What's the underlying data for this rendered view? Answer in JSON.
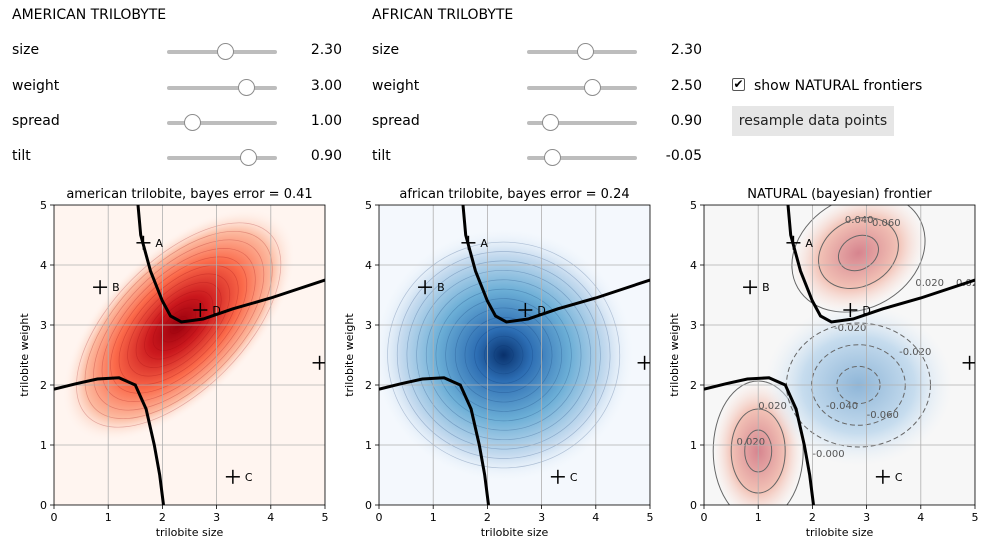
{
  "american": {
    "title": "AMERICAN TRILOBYTE",
    "controls": [
      {
        "label": "size",
        "value": "2.30",
        "level": 0.53
      },
      {
        "label": "weight",
        "value": "3.00",
        "level": 0.72
      },
      {
        "label": "spread",
        "value": "1.00",
        "level": 0.23
      },
      {
        "label": "tilt",
        "value": "0.90",
        "level": 0.74
      }
    ]
  },
  "african": {
    "title": "AFRICAN TRILOBYTE",
    "controls": [
      {
        "label": "size",
        "value": "2.30",
        "level": 0.53
      },
      {
        "label": "weight",
        "value": "2.50",
        "level": 0.59
      },
      {
        "label": "spread",
        "value": "0.90",
        "level": 0.21
      },
      {
        "label": "tilt",
        "value": "-0.05",
        "level": 0.23
      }
    ]
  },
  "options": {
    "show_frontiers_label": "show NATURAL frontiers",
    "show_frontiers_checked": true,
    "resample_label": "resample data points"
  },
  "chart_data": [
    {
      "type": "heatmap",
      "title": "american trilobite, bayes error = 0.41",
      "xlabel": "trilobite size",
      "ylabel": "trilobite weight",
      "xlim": [
        0,
        5
      ],
      "ylim": [
        0,
        5
      ],
      "xticks": [
        "0",
        "1",
        "2",
        "3",
        "4",
        "5"
      ],
      "yticks": [
        "0",
        "1",
        "2",
        "3",
        "4",
        "5"
      ],
      "colormap": "Reds",
      "color": "#cb181d",
      "density": {
        "mean": [
          2.3,
          3.0
        ],
        "spread": 1.0,
        "tilt": 0.9
      },
      "grid": true
    },
    {
      "type": "heatmap",
      "title": "african trilobite, bayes error = 0.24",
      "xlabel": "trilobite size",
      "ylabel": "trilobite weight",
      "xlim": [
        0,
        5
      ],
      "ylim": [
        0,
        5
      ],
      "xticks": [
        "0",
        "1",
        "2",
        "3",
        "4",
        "5"
      ],
      "yticks": [
        "0",
        "1",
        "2",
        "3",
        "4",
        "5"
      ],
      "colormap": "Blues",
      "color": "#2c6db3",
      "density": {
        "mean": [
          2.3,
          2.5
        ],
        "spread": 0.9,
        "tilt": -0.05
      },
      "grid": true
    },
    {
      "type": "heatmap",
      "title": "NATURAL (bayesian) frontier",
      "xlabel": "trilobite size",
      "ylabel": "trilobite weight",
      "xlim": [
        0,
        5
      ],
      "ylim": [
        0,
        5
      ],
      "xticks": [
        "0",
        "1",
        "2",
        "3",
        "4",
        "5"
      ],
      "yticks": [
        "0",
        "1",
        "2",
        "3",
        "4",
        "5"
      ],
      "colormap": "RdBu diverging",
      "contour_labels": [
        "0.040",
        "0.060",
        "0.020",
        "0.020",
        "-0.020",
        "-0.040",
        "-0.060",
        "0.020",
        "0.020",
        "-0.000",
        "-0.020"
      ],
      "grid": true
    }
  ],
  "points": [
    {
      "label": "A",
      "x": 1.65,
      "y": 4.37
    },
    {
      "label": "B",
      "x": 0.85,
      "y": 3.63
    },
    {
      "label": "C",
      "x": 3.3,
      "y": 0.47
    },
    {
      "label": "D",
      "x": 2.7,
      "y": 3.25
    },
    {
      "label": "E",
      "x": 4.9,
      "y": 2.37
    }
  ],
  "frontiers": [
    [
      [
        1.55,
        5
      ],
      [
        1.6,
        4.5
      ],
      [
        1.78,
        3.9
      ],
      [
        2.0,
        3.4
      ],
      [
        2.15,
        3.15
      ],
      [
        2.35,
        3.05
      ],
      [
        2.75,
        3.1
      ],
      [
        3.3,
        3.27
      ],
      [
        4.0,
        3.45
      ],
      [
        5.0,
        3.75
      ]
    ],
    [
      [
        0,
        1.93
      ],
      [
        0.4,
        2.02
      ],
      [
        0.8,
        2.1
      ],
      [
        1.2,
        2.12
      ],
      [
        1.5,
        2.0
      ],
      [
        1.7,
        1.6
      ],
      [
        1.85,
        1.0
      ],
      [
        1.95,
        0.5
      ],
      [
        2.02,
        0
      ]
    ]
  ]
}
